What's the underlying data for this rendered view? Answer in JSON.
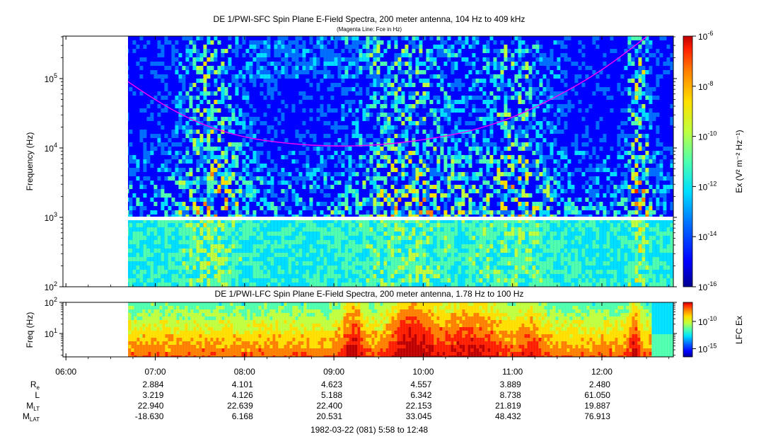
{
  "titles": {
    "sfc": "DE 1/PWI-SFC  Spin Plane E-Field Spectra, 200 meter antenna, 104 Hz to 409 kHz",
    "sfc_sub": "(Magenta Line: Fce in Hz)",
    "lfc": "DE 1/PWI-LFC  Spin Plane E-Field Spectra, 200 meter antenna, 1.78 Hz to 100 Hz"
  },
  "axes": {
    "sfc_ylabel": "Frequency (Hz)",
    "lfc_ylabel": "Freq (Hz)",
    "sfc_yticks": [
      {
        "value": 100,
        "base": "10",
        "exp": "2"
      },
      {
        "value": 1000,
        "base": "10",
        "exp": "3"
      },
      {
        "value": 10000,
        "base": "10",
        "exp": "4"
      },
      {
        "value": 100000,
        "base": "10",
        "exp": "5"
      }
    ],
    "lfc_yticks": [
      {
        "value": 10,
        "base": "10",
        "exp": "1"
      },
      {
        "value": 100,
        "base": "10",
        "exp": "2"
      }
    ],
    "x_ticks": [
      "06:00",
      "07:00",
      "08:00",
      "09:00",
      "10:00",
      "11:00",
      "12:00"
    ],
    "x_range_hours": [
      5.9667,
      12.8
    ],
    "date_label": "1982-03-22 (081) 5:58 to 12:48"
  },
  "colorbars": {
    "sfc_label": "Ex (V² m⁻² Hz⁻¹)",
    "sfc_ticks": [
      {
        "base": "10",
        "exp": "-6"
      },
      {
        "base": "10",
        "exp": "-8"
      },
      {
        "base": "10",
        "exp": "-10"
      },
      {
        "base": "10",
        "exp": "-12"
      },
      {
        "base": "10",
        "exp": "-14"
      },
      {
        "base": "10",
        "exp": "-16"
      }
    ],
    "lfc_label": "LFC Ex",
    "lfc_ticks": [
      {
        "base": "10",
        "exp": "-10"
      },
      {
        "base": "10",
        "exp": "-15"
      }
    ],
    "colors": [
      "#00008f",
      "#0000ff",
      "#006fff",
      "#00dfff",
      "#4fffaf",
      "#bfff3f",
      "#ffdf00",
      "#ff7f00",
      "#ff1f00",
      "#bf0000"
    ]
  },
  "ephemeris": {
    "rows": [
      {
        "name": "R",
        "sub": "e",
        "values": [
          "2.884",
          "4.101",
          "4.623",
          "4.557",
          "3.889",
          "2.480"
        ]
      },
      {
        "name": "L",
        "sub": "",
        "values": [
          "3.219",
          "4.126",
          "5.188",
          "6.342",
          "8.738",
          "61.050"
        ]
      },
      {
        "name": "M",
        "sub": "LT",
        "values": [
          "22.940",
          "22.639",
          "22.400",
          "22.153",
          "21.819",
          "19.887"
        ]
      },
      {
        "name": "M",
        "sub": "LAT",
        "values": [
          "-18.630",
          "6.168",
          "20.531",
          "33.045",
          "48.432",
          "76.913"
        ]
      }
    ]
  },
  "chart_data": [
    {
      "type": "heatmap",
      "title": "DE 1/PWI-SFC  Spin Plane E-Field Spectra, 200 meter antenna, 104 Hz to 409 kHz",
      "subtitle": "(Magenta Line: Fce in Hz)",
      "xlabel": "",
      "ylabel": "Frequency (Hz)",
      "y_scale": "log",
      "ylim": [
        100,
        409000
      ],
      "data_start_hour": 6.6667,
      "colorbar": "Ex (V² m⁻² Hz⁻¹)",
      "colorbar_range": [
        "1e-16",
        "1e-6"
      ],
      "fce_line": {
        "color": "#ff00ff",
        "points": [
          {
            "hour": 6.67,
            "hz": 95000
          },
          {
            "hour": 7.0,
            "hz": 48000
          },
          {
            "hour": 7.5,
            "hz": 22000
          },
          {
            "hour": 8.0,
            "hz": 14000
          },
          {
            "hour": 8.5,
            "hz": 11500
          },
          {
            "hour": 9.0,
            "hz": 10500
          },
          {
            "hour": 9.5,
            "hz": 11000
          },
          {
            "hour": 10.0,
            "hz": 13000
          },
          {
            "hour": 10.5,
            "hz": 17000
          },
          {
            "hour": 11.0,
            "hz": 27000
          },
          {
            "hour": 11.5,
            "hz": 55000
          },
          {
            "hour": 12.0,
            "hz": 130000
          },
          {
            "hour": 12.5,
            "hz": 400000
          }
        ]
      }
    },
    {
      "type": "heatmap",
      "title": "DE 1/PWI-LFC  Spin Plane E-Field Spectra, 200 meter antenna, 1.78 Hz to 100 Hz",
      "xlabel": "",
      "ylabel": "Freq (Hz)",
      "y_scale": "log",
      "ylim": [
        1.78,
        100
      ],
      "data_start_hour": 6.6667,
      "colorbar": "LFC Ex",
      "colorbar_ticks": [
        "1e-10",
        "1e-15"
      ]
    }
  ]
}
